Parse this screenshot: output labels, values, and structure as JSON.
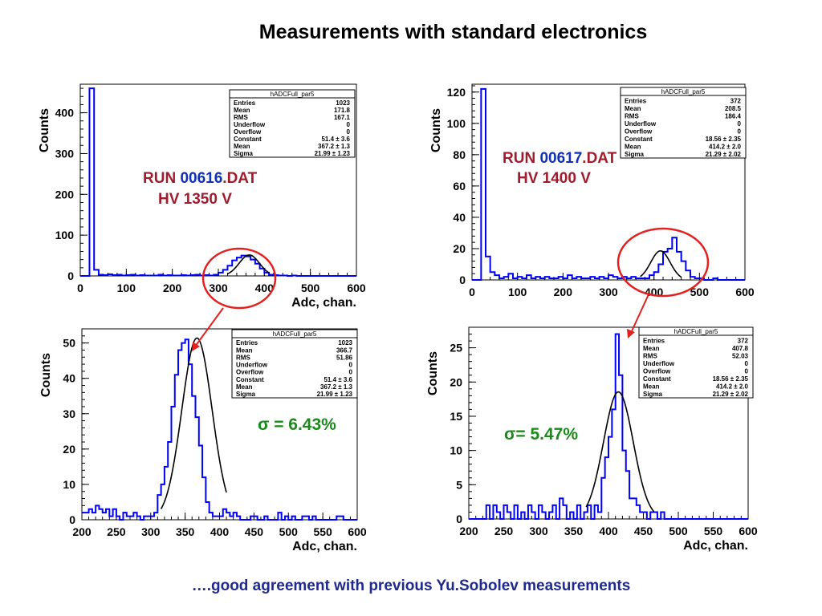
{
  "slide": {
    "title": "Measurements with standard electronics",
    "footer": "….good agreement with previous Yu.Sobolev measurements"
  },
  "colors": {
    "histogram": "#0000ff",
    "fit": "#000000",
    "run_label": "#a01c2c",
    "run_number": "#1030b8",
    "sigma_text": "#1a8a1a",
    "highlight": "#e32020"
  },
  "annotations": {
    "run1": {
      "prefix": "RUN ",
      "number": "00616",
      "suffix": ".DAT",
      "hv": "HV 1350 V"
    },
    "run2": {
      "prefix": "RUN ",
      "number": "00617",
      "suffix": ".DAT",
      "hv": "HV 1400 V"
    },
    "sigma1": "σ = 6.43%",
    "sigma2": "σ= 5.47%"
  },
  "chart_data": [
    {
      "id": "full_616",
      "type": "histogram",
      "xlabel": "Adc, chan.",
      "ylabel": "Counts",
      "xlim": [
        0,
        600
      ],
      "ylim": [
        0,
        470
      ],
      "xticks": [
        "0",
        "100",
        "200",
        "300",
        "400",
        "500",
        "600"
      ],
      "yticks": [
        "0",
        "100",
        "200",
        "300",
        "400"
      ],
      "bin_width": 10,
      "values": [
        0,
        0,
        460,
        15,
        3,
        2,
        4,
        2,
        3,
        1,
        2,
        3,
        1,
        2,
        1,
        1,
        1,
        3,
        1,
        2,
        1,
        1,
        2,
        1,
        2,
        3,
        1,
        2,
        1,
        3,
        8,
        15,
        25,
        38,
        45,
        50,
        48,
        40,
        30,
        18,
        8,
        3,
        2,
        1,
        1,
        0,
        1,
        0,
        0,
        0,
        0,
        0,
        0,
        0,
        0,
        0,
        0,
        0,
        0,
        0
      ],
      "fit": {
        "constant": 51.4,
        "mean": 367.2,
        "sigma": 21.99,
        "range": [
          320,
          410
        ]
      },
      "stats": {
        "title": "hADCFull_par5",
        "rows": [
          [
            "Entries",
            "1023"
          ],
          [
            "Mean",
            "171.8"
          ],
          [
            "RMS",
            "167.1"
          ],
          [
            "Underflow",
            "0"
          ],
          [
            "Overflow",
            "0"
          ],
          [
            "Constant",
            "51.4 ± 3.6"
          ],
          [
            "Mean",
            "367.2 ± 1.3"
          ],
          [
            "Sigma",
            "21.99 ± 1.23"
          ]
        ]
      }
    },
    {
      "id": "full_617",
      "type": "histogram",
      "xlabel": "",
      "ylabel": "Counts",
      "xlim": [
        0,
        600
      ],
      "ylim": [
        0,
        125
      ],
      "xticks": [
        "0",
        "100",
        "200",
        "300",
        "400",
        "500",
        "600"
      ],
      "yticks": [
        "0",
        "20",
        "40",
        "60",
        "80",
        "100",
        "120"
      ],
      "bin_width": 10,
      "values": [
        0,
        0,
        122,
        15,
        5,
        3,
        1,
        2,
        4,
        1,
        2,
        1,
        3,
        1,
        2,
        1,
        2,
        1,
        1,
        2,
        1,
        3,
        1,
        2,
        1,
        1,
        2,
        1,
        2,
        1,
        3,
        2,
        1,
        2,
        1,
        2,
        1,
        1,
        1,
        3,
        5,
        10,
        18,
        20,
        27,
        18,
        12,
        6,
        2,
        1,
        1,
        0,
        0,
        1,
        0,
        0,
        0,
        0,
        0,
        0
      ],
      "fit": {
        "constant": 18.56,
        "mean": 414.2,
        "sigma": 21.29,
        "range": [
          370,
          460
        ]
      },
      "stats": {
        "title": "hADCFull_par5",
        "rows": [
          [
            "Entries",
            "372"
          ],
          [
            "Mean",
            "208.5"
          ],
          [
            "RMS",
            "186.4"
          ],
          [
            "Underflow",
            "0"
          ],
          [
            "Overflow",
            "0"
          ],
          [
            "Constant",
            "18.56 ± 2.35"
          ],
          [
            "Mean",
            "414.2 ± 2.0"
          ],
          [
            "Sigma",
            "21.29 ± 2.02"
          ]
        ]
      }
    },
    {
      "id": "zoom_616",
      "type": "histogram",
      "xlabel": "Adc, chan.",
      "ylabel": "Counts",
      "xlim": [
        200,
        600
      ],
      "ylim": [
        0,
        54
      ],
      "xticks": [
        "200",
        "250",
        "300",
        "350",
        "400",
        "450",
        "500",
        "550",
        "600"
      ],
      "yticks": [
        "0",
        "10",
        "20",
        "30",
        "40",
        "50"
      ],
      "bin_start": 200,
      "bin_width": 5,
      "values": [
        2,
        2,
        3,
        2,
        4,
        3,
        2,
        3,
        1,
        3,
        1,
        0,
        2,
        1,
        1,
        2,
        1,
        0,
        1,
        1,
        1,
        2,
        7,
        10,
        15,
        22,
        32,
        41,
        48,
        50,
        51,
        44,
        35,
        29,
        21,
        12,
        5,
        2,
        1,
        1,
        1,
        3,
        2,
        1,
        2,
        1,
        0,
        0,
        0,
        1,
        1,
        0,
        0,
        1,
        0,
        0,
        0,
        2,
        0,
        1,
        0,
        1,
        0,
        0,
        1,
        1,
        0,
        1,
        0,
        0,
        0,
        0,
        0,
        0,
        1,
        1,
        0,
        0,
        0,
        0
      ],
      "fit": {
        "constant": 51.4,
        "mean": 367.2,
        "sigma": 21.99,
        "range": [
          315,
          410
        ]
      },
      "stats": {
        "title": "hADCFull_par5",
        "rows": [
          [
            "Entries",
            "1023"
          ],
          [
            "Mean",
            "366.7"
          ],
          [
            "RMS",
            "51.86"
          ],
          [
            "Underflow",
            "0"
          ],
          [
            "Overflow",
            "0"
          ],
          [
            "Constant",
            "51.4 ± 3.6"
          ],
          [
            "Mean",
            "367.2 ± 1.3"
          ],
          [
            "Sigma",
            "21.99 ± 1.23"
          ]
        ]
      }
    },
    {
      "id": "zoom_617",
      "type": "histogram",
      "xlabel": "Adc, chan.",
      "ylabel": "Counts",
      "xlim": [
        200,
        600
      ],
      "ylim": [
        0,
        28
      ],
      "xticks": [
        "200",
        "250",
        "300",
        "350",
        "400",
        "450",
        "500",
        "550",
        "600"
      ],
      "yticks": [
        "0",
        "5",
        "10",
        "15",
        "20",
        "25"
      ],
      "bin_start": 200,
      "bin_width": 5,
      "values": [
        0,
        0,
        0,
        0,
        0,
        2,
        0,
        2,
        1,
        0,
        2,
        1,
        0,
        2,
        0,
        1,
        0,
        2,
        1,
        0,
        2,
        1,
        0,
        1,
        2,
        0,
        3,
        2,
        0,
        1,
        0,
        2,
        0,
        1,
        2,
        0,
        2,
        1,
        6,
        9,
        12,
        16,
        27,
        21,
        10,
        7,
        3,
        3,
        2,
        1,
        1,
        0,
        1,
        1,
        0,
        1,
        0,
        0,
        0,
        0,
        0,
        0,
        0,
        0,
        0,
        0,
        0,
        0,
        0,
        0,
        0,
        0,
        0,
        0,
        0,
        0,
        0,
        0,
        0,
        0
      ],
      "fit": {
        "constant": 18.56,
        "mean": 414.2,
        "sigma": 21.29,
        "range": [
          368,
          465
        ]
      },
      "stats": {
        "title": "hADCFull_par5",
        "rows": [
          [
            "Entries",
            "372"
          ],
          [
            "Mean",
            "407.8"
          ],
          [
            "RMS",
            "52.03"
          ],
          [
            "Underflow",
            "0"
          ],
          [
            "Overflow",
            "0"
          ],
          [
            "Constant",
            "18.56 ± 2.35"
          ],
          [
            "Mean",
            "414.2 ± 2.0"
          ],
          [
            "Sigma",
            "21.29 ± 2.02"
          ]
        ]
      }
    }
  ]
}
